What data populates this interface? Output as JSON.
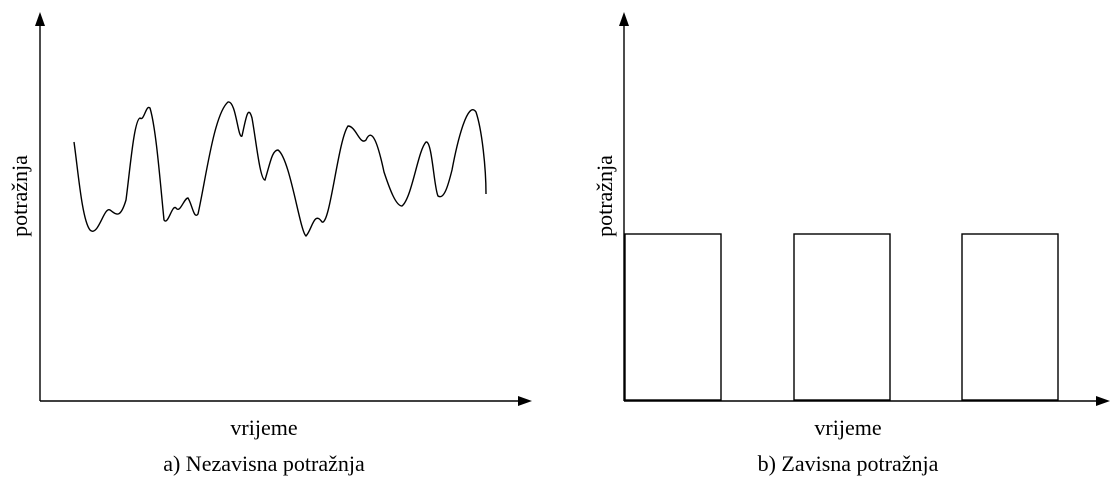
{
  "panels": [
    {
      "xlabel": "vrijeme",
      "ylabel": "potražnja",
      "caption": "a) Nezavisna potražnja"
    },
    {
      "xlabel": "vrijeme",
      "ylabel": "potražnja",
      "caption": "b) Zavisna potražnja"
    }
  ],
  "colors": {
    "stroke": "#000000",
    "background": "#ffffff"
  }
}
